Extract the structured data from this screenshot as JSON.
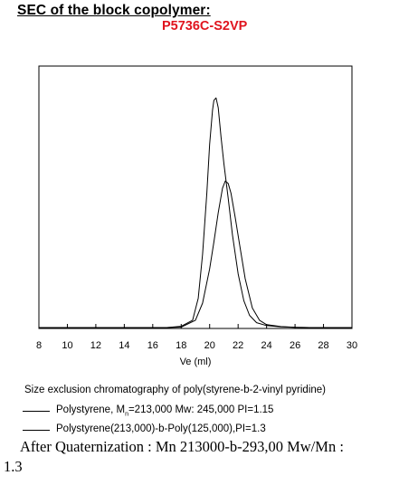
{
  "header": {
    "title": "SEC of the block copolymer:",
    "sample_code": "P5736C-S2VP",
    "sample_code_color": "#e0141e"
  },
  "chart_data": {
    "type": "line",
    "title": "",
    "xlabel": "Ve (ml)",
    "ylabel": "",
    "xlim": [
      8,
      30
    ],
    "x_ticks": [
      8,
      10,
      12,
      14,
      16,
      18,
      20,
      22,
      24,
      26,
      28,
      30
    ],
    "y_ticks_visible": false,
    "ylim": [
      0,
      1.0
    ],
    "grid": false,
    "legend_position": "below",
    "series": [
      {
        "name": "Polystyrene, Mn=213,000 Mw: 245,000  PI=1.15",
        "legend_main": "Polystyrene, M",
        "legend_sub": "n",
        "legend_rest": "=213,000 Mw: 245,000  PI=1.15",
        "x": [
          8,
          10,
          12,
          14,
          16,
          17,
          18,
          18.8,
          19.2,
          19.5,
          19.8,
          20.0,
          20.2,
          20.3,
          20.45,
          20.6,
          20.8,
          21.0,
          21.3,
          21.6,
          22.0,
          22.4,
          22.8,
          23.3,
          24,
          25,
          26,
          27,
          28,
          29,
          30
        ],
        "y": [
          0,
          0,
          0,
          0,
          0,
          0,
          0.005,
          0.03,
          0.12,
          0.3,
          0.55,
          0.75,
          0.89,
          0.93,
          0.94,
          0.9,
          0.78,
          0.67,
          0.53,
          0.38,
          0.22,
          0.11,
          0.05,
          0.02,
          0.008,
          0.003,
          0.001,
          0,
          0,
          0,
          0
        ],
        "color": "#000000"
      },
      {
        "name": "Polystyrene(213,000)-b-Poly(125,000),PI=1.3",
        "legend_main": "Polystyrene(213,000)-b-Poly(125,000),PI=1.3",
        "x": [
          8,
          10,
          12,
          14,
          16,
          17,
          18,
          19.0,
          19.5,
          20.0,
          20.3,
          20.6,
          20.9,
          21.1,
          21.3,
          21.5,
          21.8,
          22.1,
          22.5,
          23.0,
          23.5,
          24,
          25,
          26,
          27,
          28,
          29,
          30
        ],
        "y": [
          0,
          0,
          0,
          0,
          0,
          0,
          0.002,
          0.03,
          0.1,
          0.24,
          0.35,
          0.47,
          0.57,
          0.6,
          0.59,
          0.55,
          0.45,
          0.34,
          0.2,
          0.08,
          0.03,
          0.012,
          0.004,
          0.001,
          0,
          0,
          0,
          0
        ],
        "color": "#000000"
      }
    ]
  },
  "caption": "Size exclusion chromatography of poly(styrene-b-2-vinyl pyridine)",
  "note": {
    "line1": "After Quaternization :  Mn 213000-b-293,00 Mw/Mn :",
    "line2": "1.3"
  }
}
